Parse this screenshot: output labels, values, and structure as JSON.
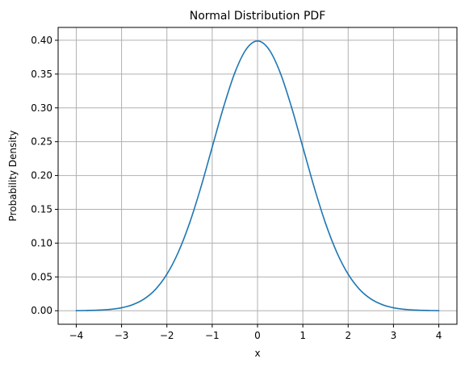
{
  "chart_data": {
    "type": "line",
    "title": "Normal Distribution PDF",
    "xlabel": "x",
    "ylabel": "Probability Density",
    "xlim": [
      -4.4,
      4.4
    ],
    "ylim": [
      -0.02,
      0.419
    ],
    "grid": true,
    "xticks": [
      -4,
      -3,
      -2,
      -1,
      0,
      1,
      2,
      3,
      4
    ],
    "xtick_labels": [
      "−4",
      "−3",
      "−2",
      "−1",
      "0",
      "1",
      "2",
      "3",
      "4"
    ],
    "yticks": [
      0.0,
      0.05,
      0.1,
      0.15,
      0.2,
      0.25,
      0.3,
      0.35,
      0.4
    ],
    "ytick_labels": [
      "0.00",
      "0.05",
      "0.10",
      "0.15",
      "0.20",
      "0.25",
      "0.30",
      "0.35",
      "0.40"
    ],
    "series": [
      {
        "color": "#1f77b4",
        "x": [
          -4.0,
          -3.75,
          -3.5,
          -3.25,
          -3.0,
          -2.75,
          -2.5,
          -2.25,
          -2.0,
          -1.75,
          -1.5,
          -1.25,
          -1.0,
          -0.75,
          -0.5,
          -0.25,
          0.0,
          0.25,
          0.5,
          0.75,
          1.0,
          1.25,
          1.5,
          1.75,
          2.0,
          2.25,
          2.5,
          2.75,
          3.0,
          3.25,
          3.5,
          3.75,
          4.0
        ],
        "y": [
          0.0001,
          0.0004,
          0.0009,
          0.002,
          0.0044,
          0.0091,
          0.0175,
          0.0317,
          0.054,
          0.0863,
          0.1295,
          0.1826,
          0.242,
          0.3011,
          0.3521,
          0.3867,
          0.3989,
          0.3867,
          0.3521,
          0.3011,
          0.242,
          0.1826,
          0.1295,
          0.0863,
          0.054,
          0.0317,
          0.0175,
          0.0091,
          0.0044,
          0.002,
          0.0009,
          0.0004,
          0.0001
        ]
      }
    ]
  }
}
